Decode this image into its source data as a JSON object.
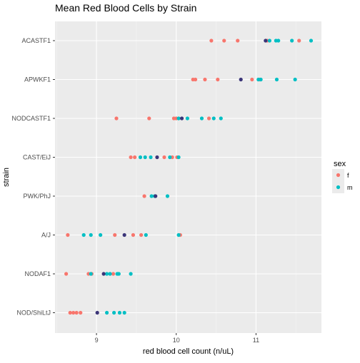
{
  "chart_data": {
    "type": "scatter",
    "title": "Mean Red Blood Cells by Strain",
    "xlabel": "red blood cell count (n/uL)",
    "ylabel": "strain",
    "xlim": [
      8.48,
      11.82
    ],
    "x_ticks": [
      9,
      10,
      11
    ],
    "categories": [
      "ACASTF1",
      "APWKF1",
      "NODCASTF1",
      "CAST/EiJ",
      "PWK/PhJ",
      "A/J",
      "NODAF1",
      "NOD/ShiLtJ"
    ],
    "legend": {
      "title": "sex",
      "position": "right",
      "entries": [
        {
          "label": "f",
          "color": "#f8766d"
        },
        {
          "label": "m",
          "color": "#00bfc4"
        }
      ]
    },
    "series": [
      {
        "name": "f",
        "color": "#f8766d",
        "points": [
          {
            "strain": "ACASTF1",
            "x": 10.44
          },
          {
            "strain": "ACASTF1",
            "x": 10.6
          },
          {
            "strain": "ACASTF1",
            "x": 10.77
          },
          {
            "strain": "ACASTF1",
            "x": 11.14
          },
          {
            "strain": "ACASTF1",
            "x": 11.54
          },
          {
            "strain": "APWKF1",
            "x": 10.21
          },
          {
            "strain": "APWKF1",
            "x": 10.24
          },
          {
            "strain": "APWKF1",
            "x": 10.36
          },
          {
            "strain": "APWKF1",
            "x": 10.52
          },
          {
            "strain": "APWKF1",
            "x": 10.95
          },
          {
            "strain": "APWKF1",
            "x": 11.05
          },
          {
            "strain": "NODCASTF1",
            "x": 9.25
          },
          {
            "strain": "NODCASTF1",
            "x": 9.66
          },
          {
            "strain": "NODCASTF1",
            "x": 9.97
          },
          {
            "strain": "NODCASTF1",
            "x": 10.0
          },
          {
            "strain": "NODCASTF1",
            "x": 10.41
          },
          {
            "strain": "CAST/EiJ",
            "x": 9.43
          },
          {
            "strain": "CAST/EiJ",
            "x": 9.48
          },
          {
            "strain": "CAST/EiJ",
            "x": 9.85
          },
          {
            "strain": "CAST/EiJ",
            "x": 9.95
          },
          {
            "strain": "CAST/EiJ",
            "x": 10.01
          },
          {
            "strain": "PWK/PhJ",
            "x": 9.6
          },
          {
            "strain": "A/J",
            "x": 8.64
          },
          {
            "strain": "A/J",
            "x": 9.23
          },
          {
            "strain": "A/J",
            "x": 9.46
          },
          {
            "strain": "A/J",
            "x": 9.56
          },
          {
            "strain": "A/J",
            "x": 10.05
          },
          {
            "strain": "NODAF1",
            "x": 8.62
          },
          {
            "strain": "NODAF1",
            "x": 8.9
          },
          {
            "strain": "NODAF1",
            "x": 8.94
          },
          {
            "strain": "NODAF1",
            "x": 9.21
          },
          {
            "strain": "NOD/ShiLtJ",
            "x": 8.67
          },
          {
            "strain": "NOD/ShiLtJ",
            "x": 8.71
          },
          {
            "strain": "NOD/ShiLtJ",
            "x": 8.75
          },
          {
            "strain": "NOD/ShiLtJ",
            "x": 8.8
          }
        ]
      },
      {
        "name": "m",
        "color": "#00bfc4",
        "points": [
          {
            "strain": "ACASTF1",
            "x": 11.17
          },
          {
            "strain": "ACASTF1",
            "x": 11.25
          },
          {
            "strain": "ACASTF1",
            "x": 11.28
          },
          {
            "strain": "ACASTF1",
            "x": 11.45
          },
          {
            "strain": "ACASTF1",
            "x": 11.69
          },
          {
            "strain": "APWKF1",
            "x": 11.03
          },
          {
            "strain": "APWKF1",
            "x": 11.06
          },
          {
            "strain": "APWKF1",
            "x": 11.26
          },
          {
            "strain": "APWKF1",
            "x": 11.49
          },
          {
            "strain": "NODCASTF1",
            "x": 10.03
          },
          {
            "strain": "NODCASTF1",
            "x": 10.14
          },
          {
            "strain": "NODCASTF1",
            "x": 10.32
          },
          {
            "strain": "NODCASTF1",
            "x": 10.47
          },
          {
            "strain": "NODCASTF1",
            "x": 10.56
          },
          {
            "strain": "CAST/EiJ",
            "x": 9.55
          },
          {
            "strain": "CAST/EiJ",
            "x": 9.61
          },
          {
            "strain": "CAST/EiJ",
            "x": 9.68
          },
          {
            "strain": "CAST/EiJ",
            "x": 9.92
          },
          {
            "strain": "CAST/EiJ",
            "x": 10.03
          },
          {
            "strain": "PWK/PhJ",
            "x": 9.69
          },
          {
            "strain": "PWK/PhJ",
            "x": 9.73
          },
          {
            "strain": "PWK/PhJ",
            "x": 9.89
          },
          {
            "strain": "A/J",
            "x": 8.84
          },
          {
            "strain": "A/J",
            "x": 8.93
          },
          {
            "strain": "A/J",
            "x": 9.05
          },
          {
            "strain": "A/J",
            "x": 9.62
          },
          {
            "strain": "A/J",
            "x": 10.03
          },
          {
            "strain": "NODAF1",
            "x": 8.93
          },
          {
            "strain": "NODAF1",
            "x": 9.13
          },
          {
            "strain": "NODAF1",
            "x": 9.17
          },
          {
            "strain": "NODAF1",
            "x": 9.26
          },
          {
            "strain": "NODAF1",
            "x": 9.28
          },
          {
            "strain": "NODAF1",
            "x": 9.43
          },
          {
            "strain": "NOD/ShiLtJ",
            "x": 9.13
          },
          {
            "strain": "NOD/ShiLtJ",
            "x": 9.22
          },
          {
            "strain": "NOD/ShiLtJ",
            "x": 9.29
          },
          {
            "strain": "NOD/ShiLtJ",
            "x": 9.35
          }
        ]
      },
      {
        "name": "",
        "color": "#3b3578",
        "points": [
          {
            "strain": "ACASTF1",
            "x": 11.12
          },
          {
            "strain": "APWKF1",
            "x": 10.81
          },
          {
            "strain": "NODCASTF1",
            "x": 10.07
          },
          {
            "strain": "CAST/EiJ",
            "x": 9.76
          },
          {
            "strain": "PWK/PhJ",
            "x": 9.74
          },
          {
            "strain": "A/J",
            "x": 9.35
          },
          {
            "strain": "NODAF1",
            "x": 9.09
          },
          {
            "strain": "NOD/ShiLtJ",
            "x": 9.01
          }
        ]
      }
    ]
  }
}
